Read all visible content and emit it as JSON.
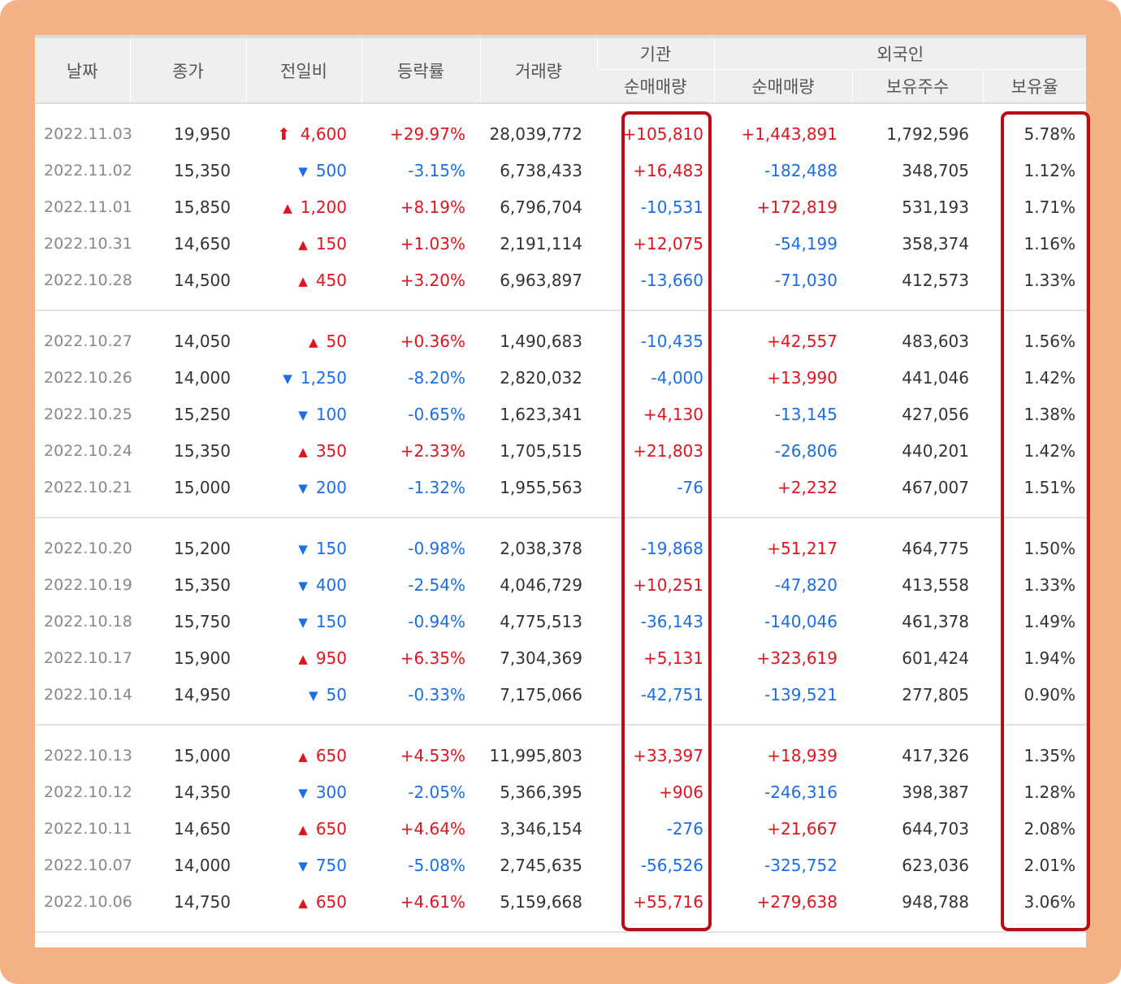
{
  "headers": {
    "date": "날짜",
    "close": "종가",
    "diff": "전일비",
    "rate": "등락률",
    "volume": "거래량",
    "institution": "기관",
    "inst_net": "순매매량",
    "foreign": "외국인",
    "foreign_net": "순매매량",
    "foreign_holding": "보유주수",
    "foreign_ratio": "보유율"
  },
  "colors": {
    "up": "#e0141e",
    "down": "#1a6ee6",
    "highlight": "#b80d17",
    "frame": "#f3b185"
  },
  "groups": [
    {
      "rows": [
        {
          "date": "2022.11.03",
          "close": "19,950",
          "dir": "upper",
          "diff": "4,600",
          "rate": "+29.97%",
          "volume": "28,039,772",
          "inst": "+105,810",
          "fnet": "+1,443,891",
          "fhold": "1,792,596",
          "frate": "5.78%"
        },
        {
          "date": "2022.11.02",
          "close": "15,350",
          "dir": "down",
          "diff": "500",
          "rate": "-3.15%",
          "volume": "6,738,433",
          "inst": "+16,483",
          "fnet": "-182,488",
          "fhold": "348,705",
          "frate": "1.12%"
        },
        {
          "date": "2022.11.01",
          "close": "15,850",
          "dir": "up",
          "diff": "1,200",
          "rate": "+8.19%",
          "volume": "6,796,704",
          "inst": "-10,531",
          "fnet": "+172,819",
          "fhold": "531,193",
          "frate": "1.71%"
        },
        {
          "date": "2022.10.31",
          "close": "14,650",
          "dir": "up",
          "diff": "150",
          "rate": "+1.03%",
          "volume": "2,191,114",
          "inst": "+12,075",
          "fnet": "-54,199",
          "fhold": "358,374",
          "frate": "1.16%"
        },
        {
          "date": "2022.10.28",
          "close": "14,500",
          "dir": "up",
          "diff": "450",
          "rate": "+3.20%",
          "volume": "6,963,897",
          "inst": "-13,660",
          "fnet": "-71,030",
          "fhold": "412,573",
          "frate": "1.33%"
        }
      ]
    },
    {
      "rows": [
        {
          "date": "2022.10.27",
          "close": "14,050",
          "dir": "up",
          "diff": "50",
          "rate": "+0.36%",
          "volume": "1,490,683",
          "inst": "-10,435",
          "fnet": "+42,557",
          "fhold": "483,603",
          "frate": "1.56%"
        },
        {
          "date": "2022.10.26",
          "close": "14,000",
          "dir": "down",
          "diff": "1,250",
          "rate": "-8.20%",
          "volume": "2,820,032",
          "inst": "-4,000",
          "fnet": "+13,990",
          "fhold": "441,046",
          "frate": "1.42%"
        },
        {
          "date": "2022.10.25",
          "close": "15,250",
          "dir": "down",
          "diff": "100",
          "rate": "-0.65%",
          "volume": "1,623,341",
          "inst": "+4,130",
          "fnet": "-13,145",
          "fhold": "427,056",
          "frate": "1.38%"
        },
        {
          "date": "2022.10.24",
          "close": "15,350",
          "dir": "up",
          "diff": "350",
          "rate": "+2.33%",
          "volume": "1,705,515",
          "inst": "+21,803",
          "fnet": "-26,806",
          "fhold": "440,201",
          "frate": "1.42%"
        },
        {
          "date": "2022.10.21",
          "close": "15,000",
          "dir": "down",
          "diff": "200",
          "rate": "-1.32%",
          "volume": "1,955,563",
          "inst": "-76",
          "fnet": "+2,232",
          "fhold": "467,007",
          "frate": "1.51%"
        }
      ]
    },
    {
      "rows": [
        {
          "date": "2022.10.20",
          "close": "15,200",
          "dir": "down",
          "diff": "150",
          "rate": "-0.98%",
          "volume": "2,038,378",
          "inst": "-19,868",
          "fnet": "+51,217",
          "fhold": "464,775",
          "frate": "1.50%"
        },
        {
          "date": "2022.10.19",
          "close": "15,350",
          "dir": "down",
          "diff": "400",
          "rate": "-2.54%",
          "volume": "4,046,729",
          "inst": "+10,251",
          "fnet": "-47,820",
          "fhold": "413,558",
          "frate": "1.33%"
        },
        {
          "date": "2022.10.18",
          "close": "15,750",
          "dir": "down",
          "diff": "150",
          "rate": "-0.94%",
          "volume": "4,775,513",
          "inst": "-36,143",
          "fnet": "-140,046",
          "fhold": "461,378",
          "frate": "1.49%"
        },
        {
          "date": "2022.10.17",
          "close": "15,900",
          "dir": "up",
          "diff": "950",
          "rate": "+6.35%",
          "volume": "7,304,369",
          "inst": "+5,131",
          "fnet": "+323,619",
          "fhold": "601,424",
          "frate": "1.94%"
        },
        {
          "date": "2022.10.14",
          "close": "14,950",
          "dir": "down",
          "diff": "50",
          "rate": "-0.33%",
          "volume": "7,175,066",
          "inst": "-42,751",
          "fnet": "-139,521",
          "fhold": "277,805",
          "frate": "0.90%"
        }
      ]
    },
    {
      "rows": [
        {
          "date": "2022.10.13",
          "close": "15,000",
          "dir": "up",
          "diff": "650",
          "rate": "+4.53%",
          "volume": "11,995,803",
          "inst": "+33,397",
          "fnet": "+18,939",
          "fhold": "417,326",
          "frate": "1.35%"
        },
        {
          "date": "2022.10.12",
          "close": "14,350",
          "dir": "down",
          "diff": "300",
          "rate": "-2.05%",
          "volume": "5,366,395",
          "inst": "+906",
          "fnet": "-246,316",
          "fhold": "398,387",
          "frate": "1.28%"
        },
        {
          "date": "2022.10.11",
          "close": "14,650",
          "dir": "up",
          "diff": "650",
          "rate": "+4.64%",
          "volume": "3,346,154",
          "inst": "-276",
          "fnet": "+21,667",
          "fhold": "644,703",
          "frate": "2.08%"
        },
        {
          "date": "2022.10.07",
          "close": "14,000",
          "dir": "down",
          "diff": "750",
          "rate": "-5.08%",
          "volume": "2,745,635",
          "inst": "-56,526",
          "fnet": "-325,752",
          "fhold": "623,036",
          "frate": "2.01%"
        },
        {
          "date": "2022.10.06",
          "close": "14,750",
          "dir": "up",
          "diff": "650",
          "rate": "+4.61%",
          "volume": "5,159,668",
          "inst": "+55,716",
          "fnet": "+279,638",
          "fhold": "948,788",
          "frate": "3.06%"
        }
      ]
    }
  ],
  "icons": {
    "upper": "upper-limit-arrow-icon",
    "up": "triangle-up-icon",
    "down": "triangle-down-icon"
  }
}
